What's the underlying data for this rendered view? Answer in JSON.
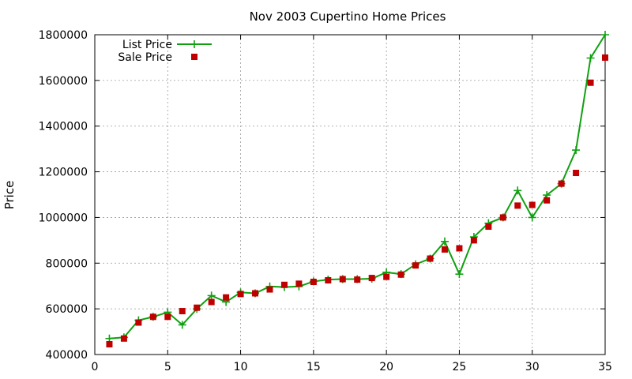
{
  "chart_data": {
    "type": "line",
    "title": "Nov 2003 Cupertino Home Prices",
    "xlabel": "",
    "ylabel": "Price",
    "xlim": [
      0,
      35
    ],
    "ylim": [
      400000,
      1800000
    ],
    "xticks": [
      0,
      5,
      10,
      15,
      20,
      25,
      30,
      35
    ],
    "yticks": [
      400000,
      600000,
      800000,
      1000000,
      1200000,
      1400000,
      1600000,
      1800000
    ],
    "grid": true,
    "legend_position": "top-left",
    "series": [
      {
        "name": "List Price",
        "style": "line-with-plus-markers",
        "color": "#10a010",
        "x": [
          1,
          2,
          3,
          4,
          5,
          6,
          7,
          8,
          9,
          10,
          11,
          12,
          13,
          14,
          15,
          16,
          17,
          18,
          19,
          20,
          21,
          22,
          23,
          24,
          25,
          26,
          27,
          28,
          29,
          30,
          31,
          32,
          33,
          34,
          35
        ],
        "y": [
          470000,
          475000,
          550000,
          565000,
          585000,
          530000,
          600000,
          658000,
          630000,
          672000,
          668000,
          698000,
          695000,
          698000,
          720000,
          728000,
          730000,
          730000,
          732000,
          760000,
          752000,
          795000,
          820000,
          895000,
          752000,
          915000,
          975000,
          1000000,
          1118000,
          1000000,
          1098000,
          1148000,
          1295000,
          1698000,
          1800000
        ]
      },
      {
        "name": "Sale Price",
        "style": "square-markers",
        "color": "#c00000",
        "x": [
          1,
          2,
          3,
          4,
          5,
          6,
          7,
          8,
          9,
          10,
          11,
          12,
          13,
          14,
          15,
          16,
          17,
          18,
          19,
          20,
          21,
          22,
          23,
          24,
          25,
          26,
          27,
          28,
          29,
          30,
          31,
          32,
          33,
          34,
          35
        ],
        "y": [
          445000,
          470000,
          540000,
          565000,
          565000,
          590000,
          605000,
          630000,
          650000,
          665000,
          668000,
          685000,
          705000,
          710000,
          718000,
          725000,
          730000,
          728000,
          735000,
          740000,
          750000,
          790000,
          820000,
          860000,
          865000,
          900000,
          960000,
          1000000,
          1052000,
          1055000,
          1075000,
          1148000,
          1195000,
          1590000,
          1700000
        ]
      }
    ]
  }
}
